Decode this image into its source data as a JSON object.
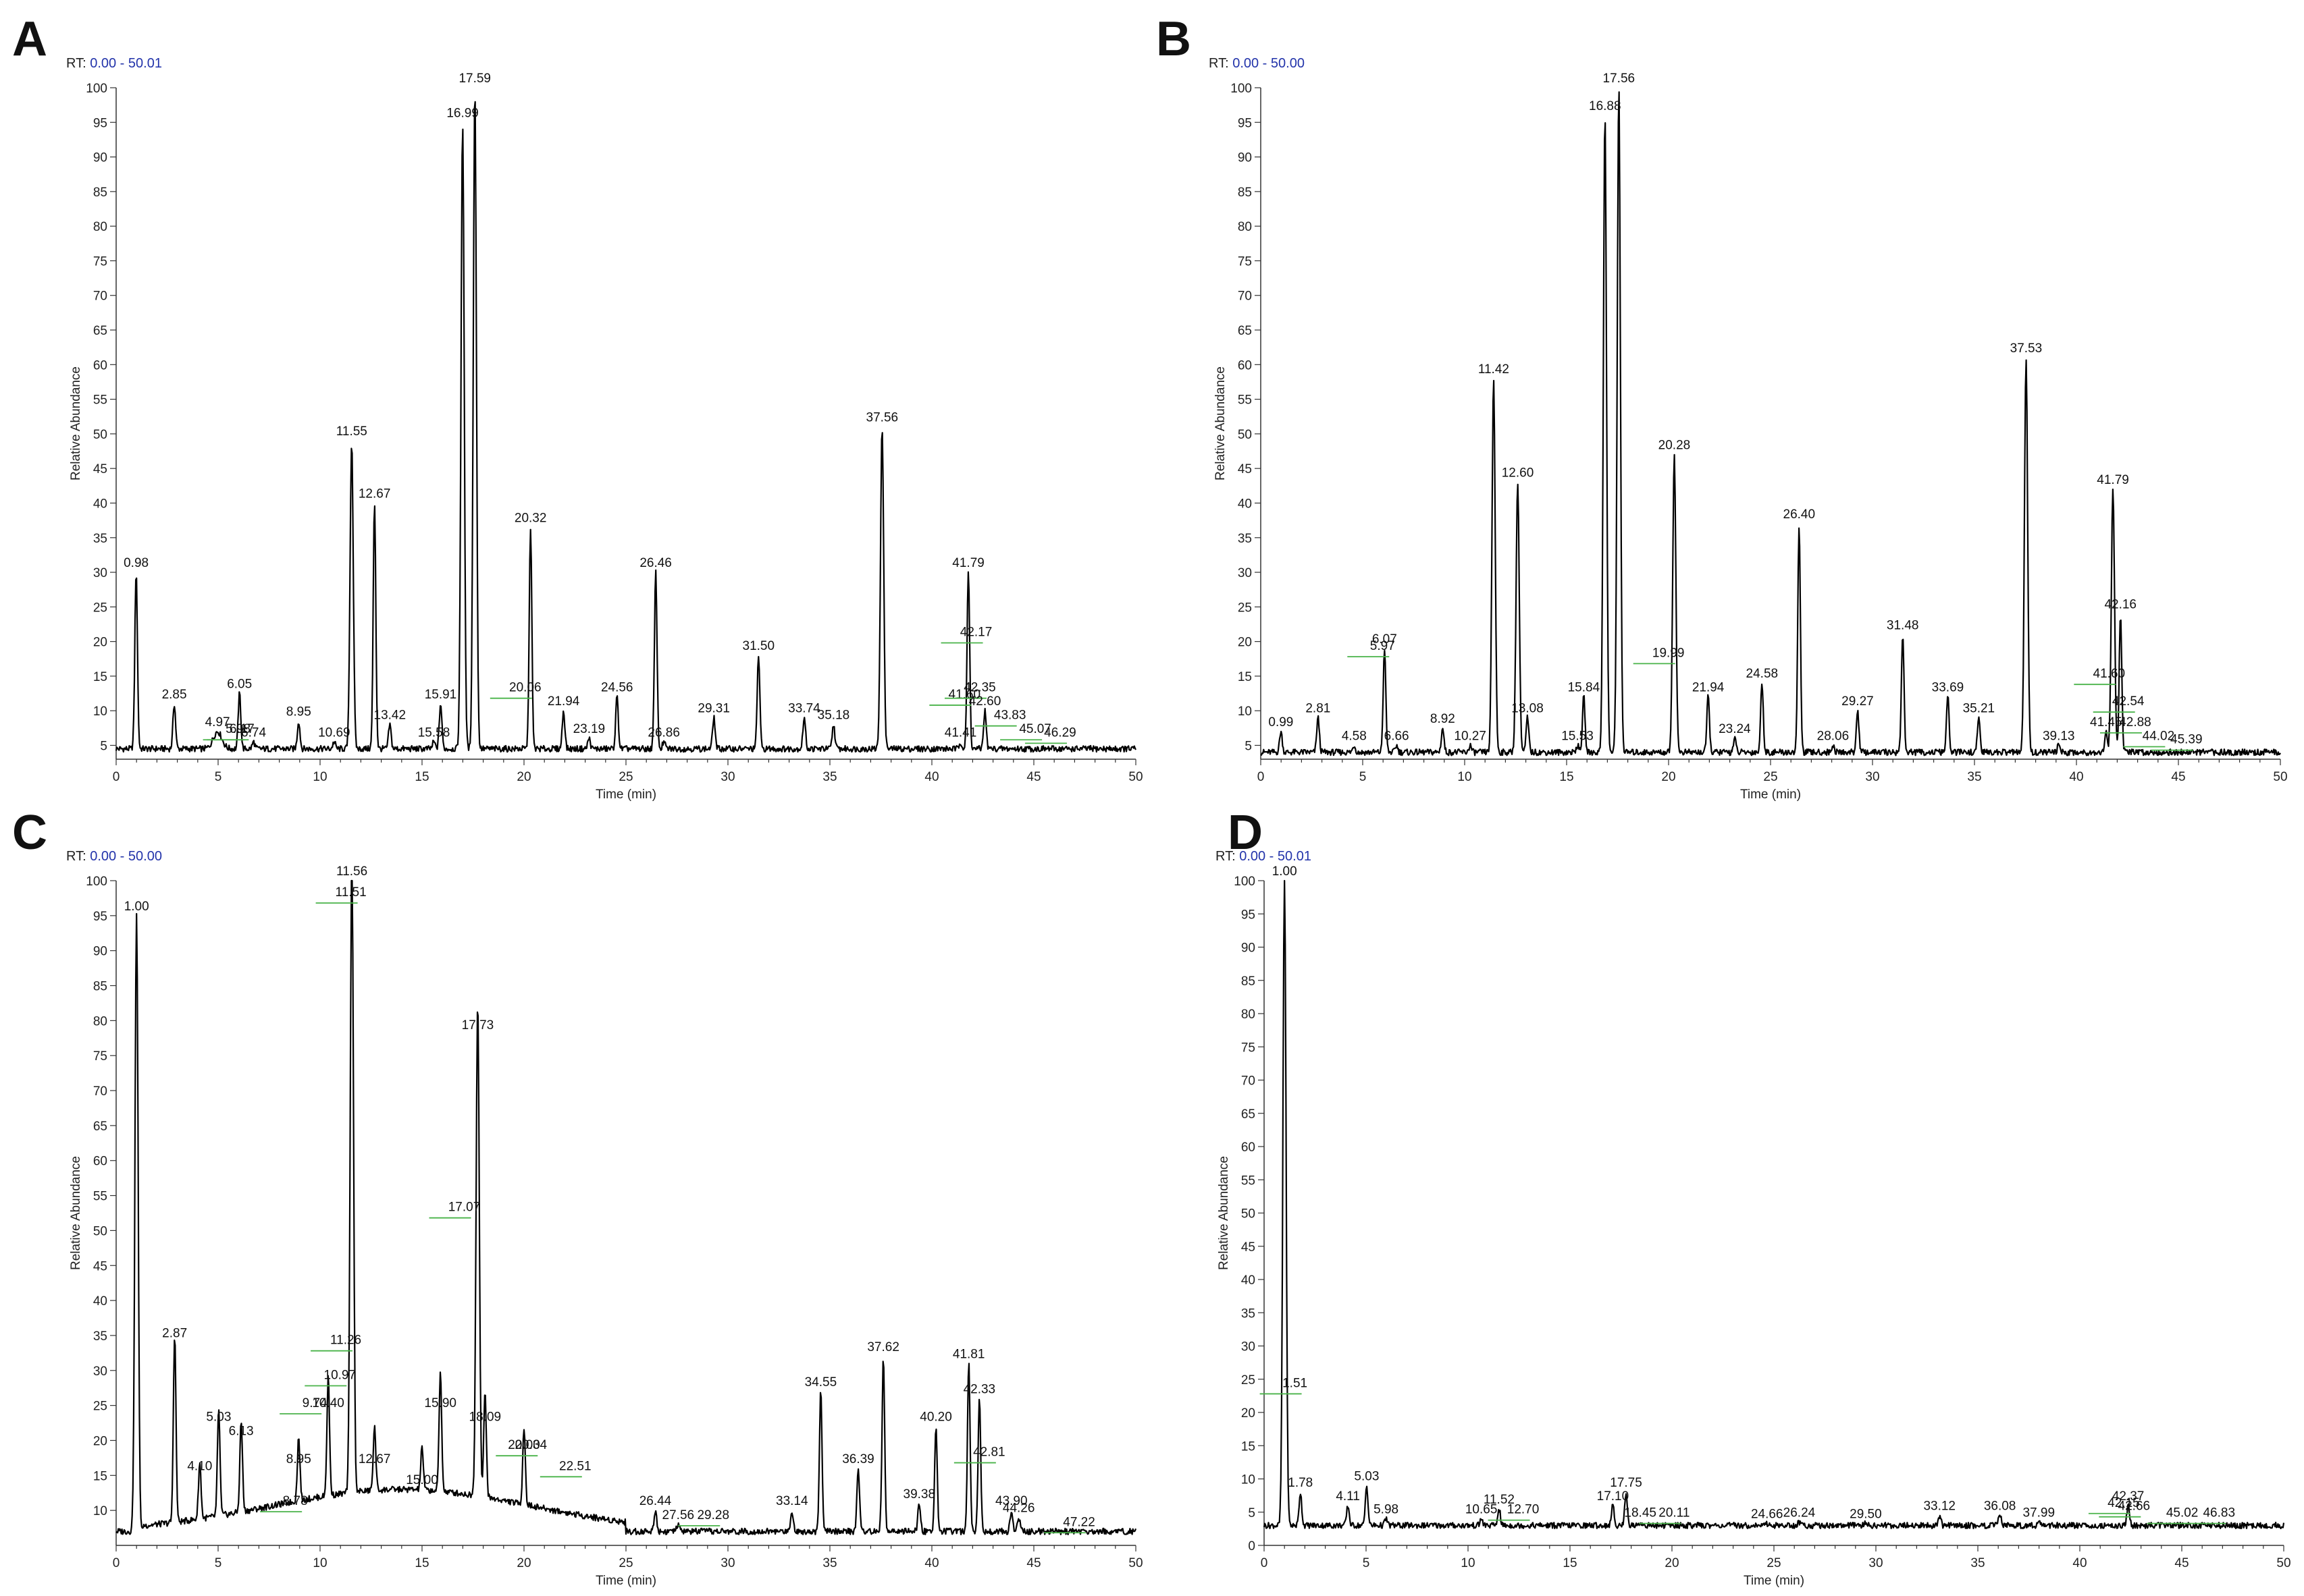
{
  "colors": {
    "trace": "#000000",
    "baseline_marker": "#49b349",
    "rt_range": "#2233aa"
  },
  "chart_data": [
    {
      "type": "line",
      "panel": "A",
      "rt_prefix": "RT:",
      "rt_range": "0.00 - 50.01",
      "xlabel": "Time (min)",
      "ylabel": "Relative Abundance",
      "xlim": [
        0,
        50
      ],
      "ylim": [
        3,
        100
      ],
      "xticks": [
        "0",
        "5",
        "10",
        "15",
        "20",
        "25",
        "30",
        "35",
        "40",
        "45",
        "50"
      ],
      "yticks": [
        "5",
        "10",
        "15",
        "20",
        "25",
        "30",
        "35",
        "40",
        "45",
        "50",
        "55",
        "60",
        "65",
        "70",
        "75",
        "80",
        "85",
        "90",
        "95",
        "100"
      ],
      "baseline": 4.5,
      "peaks": [
        {
          "rt": 0.98,
          "label": "0.98",
          "height": 30
        },
        {
          "rt": 2.85,
          "label": "2.85",
          "height": 11
        },
        {
          "rt": 4.97,
          "label": "4.97",
          "height": 7,
          "w": 0.3
        },
        {
          "rt": 5.98,
          "label": "5.98",
          "height": 6,
          "w": 0.15,
          "bkg": true
        },
        {
          "rt": 6.05,
          "label": "6.05",
          "height": 12.5
        },
        {
          "rt": 6.17,
          "label": "6.17",
          "height": 6,
          "w": 0.15,
          "bkg": true
        },
        {
          "rt": 6.74,
          "label": "6.74",
          "height": 5.5
        },
        {
          "rt": 8.95,
          "label": "8.95",
          "height": 8.5
        },
        {
          "rt": 10.69,
          "label": "10.69",
          "height": 5.5
        },
        {
          "rt": 11.55,
          "label": "11.55",
          "height": 49
        },
        {
          "rt": 12.67,
          "label": "12.67",
          "height": 40
        },
        {
          "rt": 13.42,
          "label": "13.42",
          "height": 8
        },
        {
          "rt": 15.58,
          "label": "15.58",
          "height": 5.5
        },
        {
          "rt": 15.91,
          "label": "15.91",
          "height": 11
        },
        {
          "rt": 16.99,
          "label": "16.99",
          "height": 95
        },
        {
          "rt": 17.59,
          "label": "17.59",
          "height": 100
        },
        {
          "rt": 20.06,
          "label": "20.06",
          "height": 12,
          "bkg": true
        },
        {
          "rt": 20.32,
          "label": "20.32",
          "height": 36.5
        },
        {
          "rt": 21.94,
          "label": "21.94",
          "height": 10
        },
        {
          "rt": 23.19,
          "label": "23.19",
          "height": 6
        },
        {
          "rt": 24.56,
          "label": "24.56",
          "height": 12
        },
        {
          "rt": 26.46,
          "label": "26.46",
          "height": 30
        },
        {
          "rt": 26.86,
          "label": "26.86",
          "height": 5.5
        },
        {
          "rt": 29.31,
          "label": "29.31",
          "height": 9
        },
        {
          "rt": 31.5,
          "label": "31.50",
          "height": 18
        },
        {
          "rt": 33.74,
          "label": "33.74",
          "height": 9
        },
        {
          "rt": 35.18,
          "label": "35.18",
          "height": 8
        },
        {
          "rt": 37.56,
          "label": "37.56",
          "height": 51
        },
        {
          "rt": 41.41,
          "label": "41.41",
          "height": 5.5
        },
        {
          "rt": 41.6,
          "label": "41.60",
          "height": 11,
          "bkg": true
        },
        {
          "rt": 41.79,
          "label": "41.79",
          "height": 30
        },
        {
          "rt": 42.17,
          "label": "42.17",
          "height": 20,
          "bkg": true
        },
        {
          "rt": 42.35,
          "label": "42.35",
          "height": 12,
          "bkg": true
        },
        {
          "rt": 42.6,
          "label": "42.60",
          "height": 10
        },
        {
          "rt": 43.83,
          "label": "43.83",
          "height": 8,
          "bkg": true
        },
        {
          "rt": 45.07,
          "label": "45.07",
          "height": 6,
          "bkg": true
        },
        {
          "rt": 46.29,
          "label": "46.29",
          "height": 5.5,
          "bkg": true
        }
      ]
    },
    {
      "type": "line",
      "panel": "B",
      "rt_prefix": "RT:",
      "rt_range": "0.00 - 50.00",
      "xlabel": "Time (min)",
      "ylabel": "Relative Abundance",
      "xlim": [
        0,
        50
      ],
      "ylim": [
        3,
        100
      ],
      "xticks": [
        "0",
        "5",
        "10",
        "15",
        "20",
        "25",
        "30",
        "35",
        "40",
        "45",
        "50"
      ],
      "yticks": [
        "5",
        "10",
        "15",
        "20",
        "25",
        "30",
        "35",
        "40",
        "45",
        "50",
        "55",
        "60",
        "65",
        "70",
        "75",
        "80",
        "85",
        "90",
        "95",
        "100"
      ],
      "baseline": 4.0,
      "peaks": [
        {
          "rt": 0.99,
          "label": "0.99",
          "height": 7
        },
        {
          "rt": 2.81,
          "label": "2.81",
          "height": 9
        },
        {
          "rt": 4.58,
          "label": "4.58",
          "height": 5
        },
        {
          "rt": 5.97,
          "label": "5.97",
          "height": 18,
          "bkg": true
        },
        {
          "rt": 6.07,
          "label": "6.07",
          "height": 19
        },
        {
          "rt": 6.66,
          "label": "6.66",
          "height": 5
        },
        {
          "rt": 8.92,
          "label": "8.92",
          "height": 7.5
        },
        {
          "rt": 10.27,
          "label": "10.27",
          "height": 5
        },
        {
          "rt": 11.42,
          "label": "11.42",
          "height": 58
        },
        {
          "rt": 12.6,
          "label": "12.60",
          "height": 43
        },
        {
          "rt": 13.08,
          "label": "13.08",
          "height": 9
        },
        {
          "rt": 15.53,
          "label": "15.53",
          "height": 5
        },
        {
          "rt": 15.84,
          "label": "15.84",
          "height": 12
        },
        {
          "rt": 16.88,
          "label": "16.88",
          "height": 96
        },
        {
          "rt": 17.56,
          "label": "17.56",
          "height": 100
        },
        {
          "rt": 19.99,
          "label": "19.99",
          "height": 17,
          "bkg": true
        },
        {
          "rt": 20.28,
          "label": "20.28",
          "height": 47
        },
        {
          "rt": 21.94,
          "label": "21.94",
          "height": 12
        },
        {
          "rt": 23.24,
          "label": "23.24",
          "height": 6
        },
        {
          "rt": 24.58,
          "label": "24.58",
          "height": 14
        },
        {
          "rt": 26.4,
          "label": "26.40",
          "height": 37
        },
        {
          "rt": 28.06,
          "label": "28.06",
          "height": 5
        },
        {
          "rt": 29.27,
          "label": "29.27",
          "height": 10
        },
        {
          "rt": 31.48,
          "label": "31.48",
          "height": 21
        },
        {
          "rt": 33.69,
          "label": "33.69",
          "height": 12
        },
        {
          "rt": 35.21,
          "label": "35.21",
          "height": 9
        },
        {
          "rt": 37.53,
          "label": "37.53",
          "height": 61
        },
        {
          "rt": 39.13,
          "label": "39.13",
          "height": 5
        },
        {
          "rt": 41.45,
          "label": "41.45",
          "height": 7
        },
        {
          "rt": 41.6,
          "label": "41.60",
          "height": 14,
          "bkg": true
        },
        {
          "rt": 41.79,
          "label": "41.79",
          "height": 42
        },
        {
          "rt": 42.16,
          "label": "42.16",
          "height": 24
        },
        {
          "rt": 42.54,
          "label": "42.54",
          "height": 10,
          "bkg": true
        },
        {
          "rt": 42.88,
          "label": "42.88",
          "height": 7,
          "bkg": true
        },
        {
          "rt": 44.02,
          "label": "44.02",
          "height": 5,
          "bkg": true
        },
        {
          "rt": 45.39,
          "label": "45.39",
          "height": 4.5,
          "bkg": true
        }
      ]
    },
    {
      "type": "line",
      "panel": "C",
      "rt_prefix": "RT:",
      "rt_range": "0.00 - 50.00",
      "xlabel": "Time (min)",
      "ylabel": "Relative Abundance",
      "xlim": [
        0,
        50
      ],
      "ylim": [
        5,
        100
      ],
      "xticks": [
        "0",
        "5",
        "10",
        "15",
        "20",
        "25",
        "30",
        "35",
        "40",
        "45",
        "50"
      ],
      "yticks": [
        "10",
        "15",
        "20",
        "25",
        "30",
        "35",
        "40",
        "45",
        "50",
        "55",
        "60",
        "65",
        "70",
        "75",
        "80",
        "85",
        "90",
        "95",
        "100"
      ],
      "baseline": 7.0,
      "peaks": [
        {
          "rt": 1.0,
          "label": "1.00",
          "height": 95
        },
        {
          "rt": 2.87,
          "label": "2.87",
          "height": 34
        },
        {
          "rt": 4.1,
          "label": "4.10",
          "height": 15
        },
        {
          "rt": 5.03,
          "label": "5.03",
          "height": 22
        },
        {
          "rt": 6.13,
          "label": "6.13",
          "height": 20
        },
        {
          "rt": 8.78,
          "label": "8.78",
          "height": 10,
          "bkg": true
        },
        {
          "rt": 8.95,
          "label": "8.95",
          "height": 16
        },
        {
          "rt": 9.74,
          "label": "9.74",
          "height": 24,
          "bkg": true
        },
        {
          "rt": 10.4,
          "label": "10.40",
          "height": 24
        },
        {
          "rt": 10.97,
          "label": "10.97",
          "height": 28,
          "bkg": true
        },
        {
          "rt": 11.26,
          "label": "11.26",
          "height": 33,
          "bkg": true
        },
        {
          "rt": 11.51,
          "label": "11.51",
          "height": 97,
          "bkg": true
        },
        {
          "rt": 11.56,
          "label": "11.56",
          "height": 100
        },
        {
          "rt": 12.67,
          "label": "12.67",
          "height": 16
        },
        {
          "rt": 15.0,
          "label": "15.00",
          "height": 13
        },
        {
          "rt": 15.9,
          "label": "15.90",
          "height": 24
        },
        {
          "rt": 17.07,
          "label": "17.07",
          "height": 52,
          "bkg": true
        },
        {
          "rt": 17.73,
          "label": "17.73",
          "height": 78
        },
        {
          "rt": 18.09,
          "label": "18.09",
          "height": 22
        },
        {
          "rt": 20.0,
          "label": "20.00",
          "height": 18
        },
        {
          "rt": 20.34,
          "label": "20.34",
          "height": 18,
          "bkg": true
        },
        {
          "rt": 22.51,
          "label": "22.51",
          "height": 15,
          "bkg": true
        },
        {
          "rt": 26.44,
          "label": "26.44",
          "height": 10
        },
        {
          "rt": 27.56,
          "label": "27.56",
          "height": 8
        },
        {
          "rt": 29.28,
          "label": "29.28",
          "height": 8,
          "bkg": true
        },
        {
          "rt": 33.14,
          "label": "33.14",
          "height": 10
        },
        {
          "rt": 34.55,
          "label": "34.55",
          "height": 27
        },
        {
          "rt": 36.39,
          "label": "36.39",
          "height": 16
        },
        {
          "rt": 37.62,
          "label": "37.62",
          "height": 32
        },
        {
          "rt": 39.38,
          "label": "39.38",
          "height": 11
        },
        {
          "rt": 40.2,
          "label": "40.20",
          "height": 22
        },
        {
          "rt": 41.81,
          "label": "41.81",
          "height": 31
        },
        {
          "rt": 42.33,
          "label": "42.33",
          "height": 26
        },
        {
          "rt": 42.81,
          "label": "42.81",
          "height": 17,
          "bkg": true
        },
        {
          "rt": 43.9,
          "label": "43.90",
          "height": 10
        },
        {
          "rt": 44.26,
          "label": "44.26",
          "height": 9
        },
        {
          "rt": 47.22,
          "label": "47.22",
          "height": 7,
          "bkg": true
        }
      ]
    },
    {
      "type": "line",
      "panel": "D",
      "rt_prefix": "RT:",
      "rt_range": "0.00 - 50.01",
      "xlabel": "Time (min)",
      "ylabel": "Relative Abundance",
      "xlim": [
        0,
        50
      ],
      "ylim": [
        0,
        100
      ],
      "xticks": [
        "0",
        "5",
        "10",
        "15",
        "20",
        "25",
        "30",
        "35",
        "40",
        "45",
        "50"
      ],
      "yticks": [
        "0",
        "5",
        "10",
        "15",
        "20",
        "25",
        "30",
        "35",
        "40",
        "45",
        "50",
        "55",
        "60",
        "65",
        "70",
        "75",
        "80",
        "85",
        "90",
        "95",
        "100"
      ],
      "baseline": 3.0,
      "peaks": [
        {
          "rt": 1.0,
          "label": "1.00",
          "height": 100
        },
        {
          "rt": 1.51,
          "label": "1.51",
          "height": 23,
          "bkg": true
        },
        {
          "rt": 1.78,
          "label": "1.78",
          "height": 8
        },
        {
          "rt": 4.11,
          "label": "4.11",
          "height": 6
        },
        {
          "rt": 5.03,
          "label": "5.03",
          "height": 9
        },
        {
          "rt": 5.98,
          "label": "5.98",
          "height": 4
        },
        {
          "rt": 10.65,
          "label": "10.65",
          "height": 4
        },
        {
          "rt": 11.52,
          "label": "11.52",
          "height": 5.5
        },
        {
          "rt": 12.7,
          "label": "12.70",
          "height": 4,
          "bkg": true
        },
        {
          "rt": 17.1,
          "label": "17.10",
          "height": 6
        },
        {
          "rt": 17.75,
          "label": "17.75",
          "height": 8
        },
        {
          "rt": 18.45,
          "label": "18.45",
          "height": 3.5
        },
        {
          "rt": 20.11,
          "label": "20.11",
          "height": 3.5,
          "bkg": true
        },
        {
          "rt": 24.66,
          "label": "24.66",
          "height": 3.3
        },
        {
          "rt": 26.24,
          "label": "26.24",
          "height": 3.5
        },
        {
          "rt": 29.5,
          "label": "29.50",
          "height": 3.3
        },
        {
          "rt": 33.12,
          "label": "33.12",
          "height": 4.5
        },
        {
          "rt": 36.08,
          "label": "36.08",
          "height": 4.5
        },
        {
          "rt": 37.99,
          "label": "37.99",
          "height": 3.5
        },
        {
          "rt": 42.15,
          "label": "42.15",
          "height": 5,
          "bkg": true
        },
        {
          "rt": 42.37,
          "label": "42.37",
          "height": 6
        },
        {
          "rt": 42.66,
          "label": "42.66",
          "height": 4.5,
          "bkg": true
        },
        {
          "rt": 45.02,
          "label": "45.02",
          "height": 3.5,
          "bkg": true
        },
        {
          "rt": 46.83,
          "label": "46.83",
          "height": 3.5,
          "bkg": true
        }
      ]
    }
  ]
}
